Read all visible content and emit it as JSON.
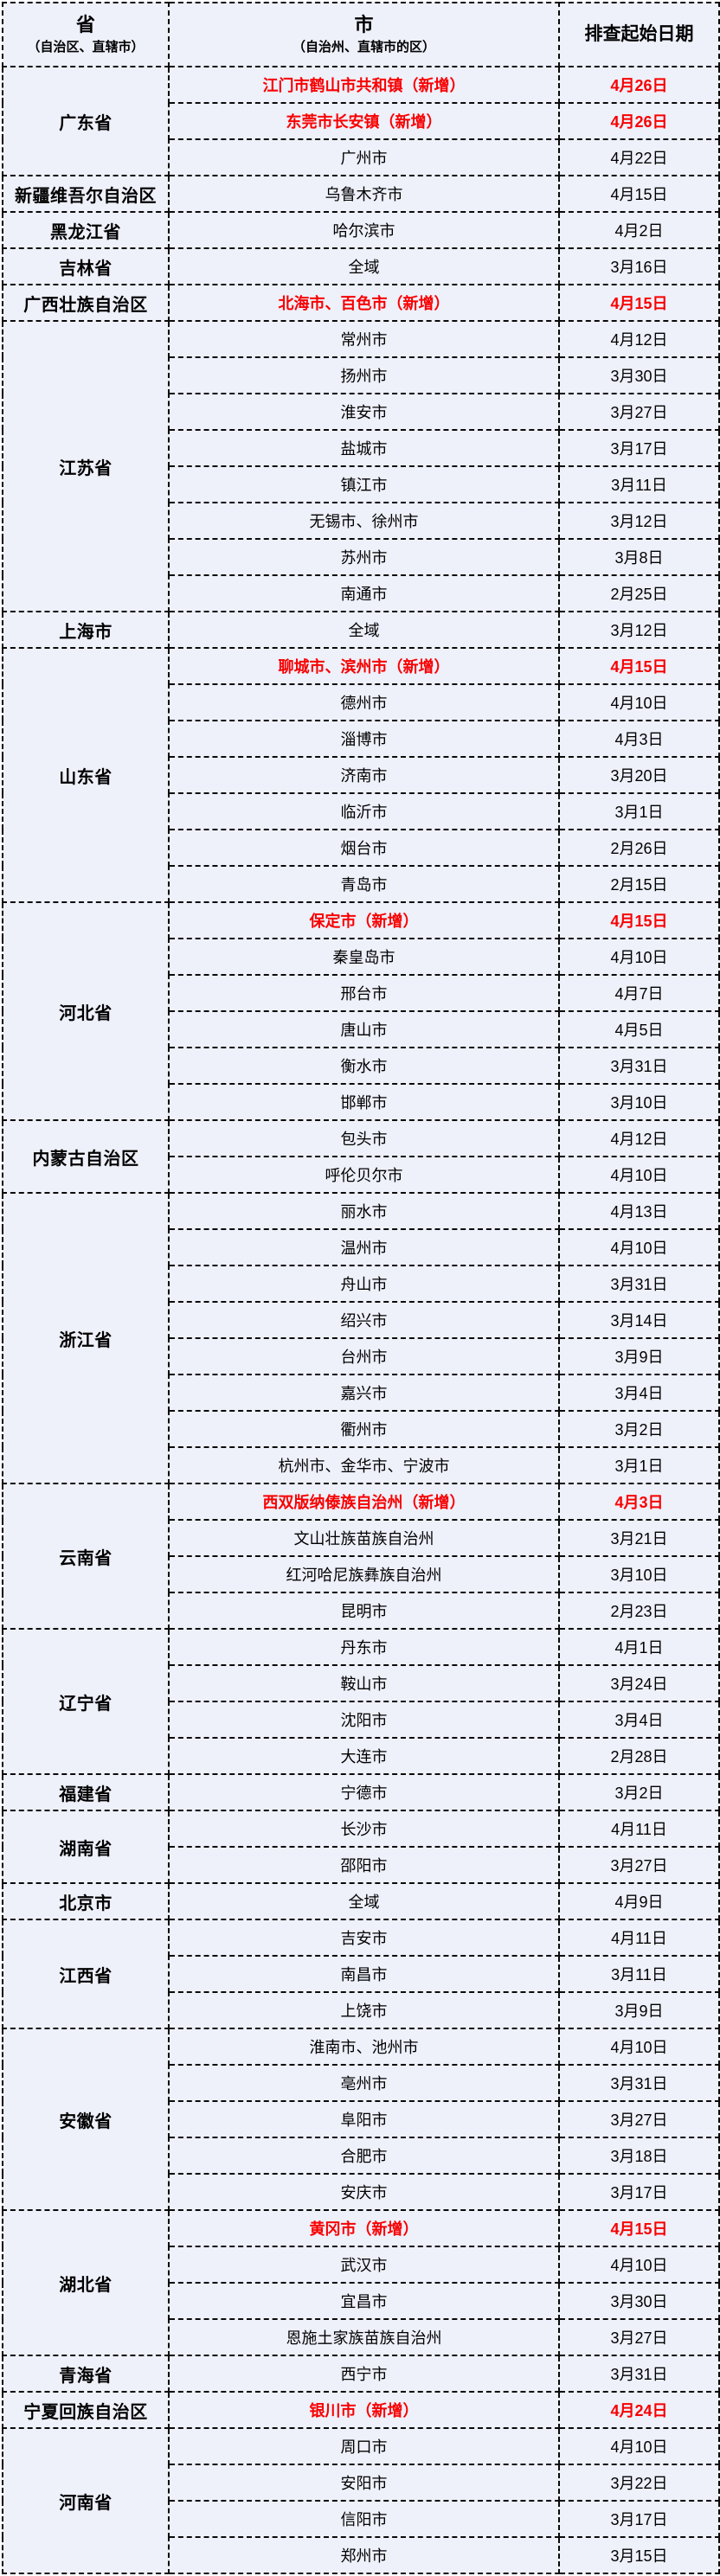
{
  "table": {
    "header": {
      "col1_title": "省",
      "col1_subtitle": "（自治区、直辖市）",
      "col2_title": "市",
      "col2_subtitle": "（自治州、直辖市的区）",
      "col3_title": "排查起始日期"
    },
    "colors": {
      "background": "#eef0fa",
      "border": "#0a0a0a",
      "highlight": "#f80000",
      "text": "#000000"
    },
    "groups": [
      {
        "province": "广东省",
        "rows": [
          {
            "city": "江门市鹤山市共和镇（新增）",
            "date": "4月26日",
            "new": true
          },
          {
            "city": "东莞市长安镇（新增）",
            "date": "4月26日",
            "new": true
          },
          {
            "city": "广州市",
            "date": "4月22日",
            "new": false
          }
        ]
      },
      {
        "province": "新疆维吾尔自治区",
        "rows": [
          {
            "city": "乌鲁木齐市",
            "date": "4月15日",
            "new": false
          }
        ]
      },
      {
        "province": "黑龙江省",
        "rows": [
          {
            "city": "哈尔滨市",
            "date": "4月2日",
            "new": false
          }
        ]
      },
      {
        "province": "吉林省",
        "rows": [
          {
            "city": "全域",
            "date": "3月16日",
            "new": false
          }
        ]
      },
      {
        "province": "广西壮族自治区",
        "rows": [
          {
            "city": "北海市、百色市（新增）",
            "date": "4月15日",
            "new": true
          }
        ]
      },
      {
        "province": "江苏省",
        "rows": [
          {
            "city": "常州市",
            "date": "4月12日",
            "new": false
          },
          {
            "city": "扬州市",
            "date": "3月30日",
            "new": false
          },
          {
            "city": "淮安市",
            "date": "3月27日",
            "new": false
          },
          {
            "city": "盐城市",
            "date": "3月17日",
            "new": false
          },
          {
            "city": "镇江市",
            "date": "3月11日",
            "new": false
          },
          {
            "city": "无锡市、徐州市",
            "date": "3月12日",
            "new": false
          },
          {
            "city": "苏州市",
            "date": "3月8日",
            "new": false
          },
          {
            "city": "南通市",
            "date": "2月25日",
            "new": false
          }
        ]
      },
      {
        "province": "上海市",
        "rows": [
          {
            "city": "全域",
            "date": "3月12日",
            "new": false
          }
        ]
      },
      {
        "province": "山东省",
        "rows": [
          {
            "city": "聊城市、滨州市（新增）",
            "date": "4月15日",
            "new": true
          },
          {
            "city": "德州市",
            "date": "4月10日",
            "new": false
          },
          {
            "city": "淄博市",
            "date": "4月3日",
            "new": false
          },
          {
            "city": "济南市",
            "date": "3月20日",
            "new": false
          },
          {
            "city": "临沂市",
            "date": "3月1日",
            "new": false
          },
          {
            "city": "烟台市",
            "date": "2月26日",
            "new": false
          },
          {
            "city": "青岛市",
            "date": "2月15日",
            "new": false
          }
        ]
      },
      {
        "province": "河北省",
        "rows": [
          {
            "city": "保定市（新增）",
            "date": "4月15日",
            "new": true
          },
          {
            "city": "秦皇岛市",
            "date": "4月10日",
            "new": false
          },
          {
            "city": "邢台市",
            "date": "4月7日",
            "new": false
          },
          {
            "city": "唐山市",
            "date": "4月5日",
            "new": false
          },
          {
            "city": "衡水市",
            "date": "3月31日",
            "new": false
          },
          {
            "city": "邯郸市",
            "date": "3月10日",
            "new": false
          }
        ]
      },
      {
        "province": "内蒙古自治区",
        "rows": [
          {
            "city": "包头市",
            "date": "4月12日",
            "new": false
          },
          {
            "city": "呼伦贝尔市",
            "date": "4月10日",
            "new": false
          }
        ]
      },
      {
        "province": "浙江省",
        "rows": [
          {
            "city": "丽水市",
            "date": "4月13日",
            "new": false
          },
          {
            "city": "温州市",
            "date": "4月10日",
            "new": false
          },
          {
            "city": "舟山市",
            "date": "3月31日",
            "new": false
          },
          {
            "city": "绍兴市",
            "date": "3月14日",
            "new": false
          },
          {
            "city": "台州市",
            "date": "3月9日",
            "new": false
          },
          {
            "city": "嘉兴市",
            "date": "3月4日",
            "new": false
          },
          {
            "city": "衢州市",
            "date": "3月2日",
            "new": false
          },
          {
            "city": "杭州市、金华市、宁波市",
            "date": "3月1日",
            "new": false
          }
        ]
      },
      {
        "province": "云南省",
        "rows": [
          {
            "city": "西双版纳傣族自治州（新增）",
            "date": "4月3日",
            "new": true
          },
          {
            "city": "文山壮族苗族自治州",
            "date": "3月21日",
            "new": false
          },
          {
            "city": "红河哈尼族彝族自治州",
            "date": "3月10日",
            "new": false
          },
          {
            "city": "昆明市",
            "date": "2月23日",
            "new": false
          }
        ]
      },
      {
        "province": "辽宁省",
        "rows": [
          {
            "city": "丹东市",
            "date": "4月1日",
            "new": false
          },
          {
            "city": "鞍山市",
            "date": "3月24日",
            "new": false
          },
          {
            "city": "沈阳市",
            "date": "3月4日",
            "new": false
          },
          {
            "city": "大连市",
            "date": "2月28日",
            "new": false
          }
        ]
      },
      {
        "province": "福建省",
        "rows": [
          {
            "city": "宁德市",
            "date": "3月2日",
            "new": false
          }
        ]
      },
      {
        "province": "湖南省",
        "rows": [
          {
            "city": "长沙市",
            "date": "4月11日",
            "new": false
          },
          {
            "city": "邵阳市",
            "date": "3月27日",
            "new": false
          }
        ]
      },
      {
        "province": "北京市",
        "rows": [
          {
            "city": "全域",
            "date": "4月9日",
            "new": false
          }
        ]
      },
      {
        "province": "江西省",
        "rows": [
          {
            "city": "吉安市",
            "date": "4月11日",
            "new": false
          },
          {
            "city": "南昌市",
            "date": "3月11日",
            "new": false
          },
          {
            "city": "上饶市",
            "date": "3月9日",
            "new": false
          }
        ]
      },
      {
        "province": "安徽省",
        "rows": [
          {
            "city": "淮南市、池州市",
            "date": "4月10日",
            "new": false
          },
          {
            "city": "亳州市",
            "date": "3月31日",
            "new": false
          },
          {
            "city": "阜阳市",
            "date": "3月27日",
            "new": false
          },
          {
            "city": "合肥市",
            "date": "3月18日",
            "new": false
          },
          {
            "city": "安庆市",
            "date": "3月17日",
            "new": false
          }
        ]
      },
      {
        "province": "湖北省",
        "rows": [
          {
            "city": "黄冈市（新增）",
            "date": "4月15日",
            "new": true
          },
          {
            "city": "武汉市",
            "date": "4月10日",
            "new": false
          },
          {
            "city": "宜昌市",
            "date": "3月30日",
            "new": false
          },
          {
            "city": "恩施土家族苗族自治州",
            "date": "3月27日",
            "new": false
          }
        ]
      },
      {
        "province": "青海省",
        "rows": [
          {
            "city": "西宁市",
            "date": "3月31日",
            "new": false
          }
        ]
      },
      {
        "province": "宁夏回族自治区",
        "rows": [
          {
            "city": "银川市（新增）",
            "date": "4月24日",
            "new": true
          }
        ]
      },
      {
        "province": "河南省",
        "rows": [
          {
            "city": "周口市",
            "date": "4月10日",
            "new": false
          },
          {
            "city": "安阳市",
            "date": "3月22日",
            "new": false
          },
          {
            "city": "信阳市",
            "date": "3月17日",
            "new": false
          },
          {
            "city": "郑州市",
            "date": "3月15日",
            "new": false
          }
        ]
      }
    ]
  }
}
